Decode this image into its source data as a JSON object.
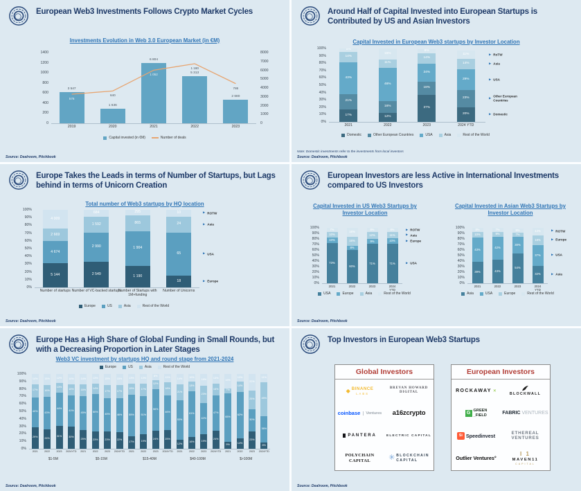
{
  "theme": {
    "slide_bg": "#dde9f1",
    "title_color": "#1e3a68",
    "subtitle_color": "#2e74b5",
    "investor_header_red": "#b13c35",
    "bar_blue": "#62a5c4",
    "line_orange": "#e7a571"
  },
  "slides": [
    {
      "title": "European Web3 Investments Follows Crypto Market Cycles",
      "source": "Source: Dealroom, Pitchbook"
    },
    {
      "title": "Around Half of Capital Invested into European Startups is Contributed by US and Asian Investors",
      "source": "Source: Dealroom, Pitchbook",
      "note": "Note: Domestic investments refer to the investments from local investors"
    },
    {
      "title": "Europe Takes the Leads in terms of Number of Startups, but Lags behind in terms of Unicorn Creation",
      "source": "Source: Dealroom, Pitchbook"
    },
    {
      "title": "European Investors are less Active in International Investments compared to US Investors",
      "source": "Source: Dealroom, Pitchbook"
    },
    {
      "title": "Europe Has a High Share of Global Funding in Small Rounds, but with a Decreasing Proportion in Later Stages",
      "source": "Source: Dealroom, Pitchbook"
    },
    {
      "title": "Top Investors in European Web3 Startups",
      "source": "Source: Dealroom, Pitchbook",
      "global_header": "Global Investors",
      "european_header": "European Investors",
      "global": {
        "binance": {
          "name": "BINANCE",
          "sub": "LABS"
        },
        "brevan": {
          "line1": "BREVAN HOWARD",
          "line2": "DIGITAL"
        },
        "coinbase": {
          "name": "coinbase",
          "sub": "Ventures"
        },
        "a16z": {
          "name": "a16zcrypto"
        },
        "pantera": {
          "name": "PANTERA"
        },
        "electric": {
          "name": "ELECTRIC CAPITAL"
        },
        "polychain": {
          "line1": "POLYCHAIN",
          "line2": "CAPITAL"
        },
        "blockchaincap": {
          "line1": "BLOCKCHAIN",
          "line2": "CAPITAL"
        }
      },
      "european": {
        "rockaway": {
          "name": "ROCKAWAY",
          "mark": "✕"
        },
        "blockwall": {
          "name": "BLOCKWALL"
        },
        "greenfield": {
          "line1": "GREEN",
          "line2": "_FIELD"
        },
        "fabric": {
          "name": "FABRIC",
          "sub": "VENTURES"
        },
        "speedinvest": {
          "badge": "Si",
          "name": "Speedinvest"
        },
        "ethereal": {
          "line1": "ETHEREAL",
          "line2": "VENTURES"
        },
        "outlier": {
          "name": "Outlier Ventures°"
        },
        "maven": {
          "mark": "I 1",
          "line1": "MAVEN11",
          "line2": "CAPITAL"
        }
      }
    }
  ],
  "chart_data": [
    {
      "type": "combo-bar-line",
      "title": "Investments Evolution in Web 3.0 European Market (in €M)",
      "categories": [
        "2019",
        "2020",
        "2021",
        "2022",
        "2023"
      ],
      "series": [
        {
          "name": "Capital invested (in €M)",
          "type": "bar",
          "axis": "right",
          "color": "#62a5c4",
          "values": [
            3547,
            1636,
            6804,
            5313,
            2680
          ]
        },
        {
          "name": "Number of deals",
          "type": "line",
          "axis": "left",
          "color": "#e7a571",
          "values": [
            576,
            640,
            1052,
            1180,
            786
          ]
        }
      ],
      "left_axis": {
        "min": 0,
        "max": 1400,
        "step": 200
      },
      "right_axis": {
        "min": 0,
        "max": 8000,
        "step": 1000
      },
      "legend_position": "bottom",
      "grid": false
    },
    {
      "type": "bar",
      "subtype": "stacked-100",
      "title": "Capital Invested in European Web3 startups by Investor Location",
      "categories": [
        "2021",
        "2022",
        "2023",
        "2024 YTD"
      ],
      "unit": "%",
      "ylim": [
        0,
        100
      ],
      "series": [
        {
          "name": "Domestic",
          "color": "#3c6a80",
          "pointer": "Domestic",
          "values": [
            17,
            12,
            37,
            20
          ]
        },
        {
          "name": "Other European Countries",
          "color": "#558ba3",
          "pointer": "Other European Countries",
          "values": [
            21,
            16,
            18,
            23
          ]
        },
        {
          "name": "USA",
          "color": "#64aac9",
          "pointer": "USA",
          "values": [
            43,
            46,
            24,
            29
          ]
        },
        {
          "name": "Asia",
          "color": "#a9cfe0",
          "pointer": "Asia",
          "values": [
            14,
            11,
            14,
            14
          ]
        },
        {
          "name": "Rest of the World",
          "color": "#d7e7f0",
          "pointer": "RoTW",
          "values": [
            5,
            15,
            6,
            11
          ]
        }
      ]
    },
    {
      "type": "bar",
      "subtype": "stacked-100",
      "absolute": true,
      "title": "Total number of Web3 startups by HQ location",
      "categories": [
        "Number of startups",
        "Number of VC-backed startups",
        "Number of Startups with 1M+funding",
        "Number of Unicorns"
      ],
      "ylim": [
        0,
        100
      ],
      "series": [
        {
          "name": "Europe",
          "color": "#2f5d76",
          "pointer": "Europe",
          "values": [
            5144,
            2549,
            1190,
            18
          ]
        },
        {
          "name": "US",
          "color": "#5b9fc0",
          "pointer": "USA",
          "values": [
            4674,
            2990,
            1904,
            65
          ]
        },
        {
          "name": "Asia",
          "color": "#9dc8dd",
          "pointer": "Asia",
          "values": [
            2669,
            1592,
            865,
            24
          ]
        },
        {
          "name": "Rest of the World",
          "color": "#d2e4f0",
          "pointer": "ROTW",
          "values": [
            4009,
            684,
            295,
            10
          ]
        }
      ]
    },
    {
      "type": "bar",
      "subtype": "stacked-100",
      "title": "Capital Invested in US Web3 Startups by Investor Location",
      "categories": [
        "2021",
        "2022",
        "2023",
        "2024 YTD"
      ],
      "unit": "%",
      "ylim": [
        0,
        100
      ],
      "series": [
        {
          "name": "USA",
          "color": "#45809c",
          "pointer": "USA",
          "values": [
            73,
            60,
            71,
            71
          ]
        },
        {
          "name": "Europe",
          "color": "#64aac9",
          "pointer": "Europe",
          "values": [
            10,
            8,
            9,
            10
          ]
        },
        {
          "name": "Asia",
          "color": "#a9cfe0",
          "pointer": "Asia",
          "values": [
            10,
            16,
            12,
            11
          ]
        },
        {
          "name": "Rest of the World",
          "color": "#d7e7f0",
          "pointer": "ROTW",
          "values": [
            7,
            16,
            8,
            8
          ]
        }
      ]
    },
    {
      "type": "bar",
      "subtype": "stacked-100",
      "title": "Capital Invested in Asian Web3 Startups by Investor Location",
      "categories": [
        "2021",
        "2022",
        "2023",
        "2024 YTD"
      ],
      "unit": "%",
      "ylim": [
        0,
        100
      ],
      "series": [
        {
          "name": "Asia",
          "color": "#45809c",
          "pointer": "Asia",
          "values": [
            39,
            43,
            54,
            32
          ]
        },
        {
          "name": "USA",
          "color": "#64aac9",
          "pointer": "USA",
          "values": [
            43,
            42,
            30,
            37
          ]
        },
        {
          "name": "Europe",
          "color": "#a9cfe0",
          "pointer": "Europe",
          "values": [
            10,
            9,
            7,
            18
          ]
        },
        {
          "name": "Rest of the World",
          "color": "#d7e7f0",
          "pointer": "ROTW",
          "values": [
            8,
            7,
            8,
            14
          ]
        }
      ]
    },
    {
      "type": "bar",
      "subtype": "stacked-100-grouped",
      "title": "Web3 VC investment by startups HQ and round stage from 2021-2024",
      "group_labels": [
        "$1-5M",
        "$5-15M",
        "$15-40M",
        "$40-100M",
        "$>100M"
      ],
      "categories": [
        "2021",
        "2022",
        "2023",
        "2024YTD",
        "2021",
        "2022",
        "2023",
        "2024YTD",
        "2021",
        "2022",
        "2023",
        "2024YTD",
        "2021",
        "2022",
        "2023",
        "2024YTD",
        "2021",
        "2022",
        "2023",
        "2024YTD"
      ],
      "unit": "%",
      "ylim": [
        0,
        100
      ],
      "series": [
        {
          "name": "Europe",
          "color": "#2f5d76",
          "values": [
            29,
            26,
            31,
            30,
            25,
            23,
            23,
            22,
            17,
            19,
            24,
            25,
            12,
            16,
            19,
            24,
            9,
            14,
            23,
            8
          ]
        },
        {
          "name": "US",
          "color": "#5b9fc0",
          "values": [
            40,
            43,
            44,
            41,
            45,
            50,
            45,
            46,
            55,
            51,
            56,
            46,
            53,
            61,
            42,
            47,
            65,
            62,
            30,
            36
          ]
        },
        {
          "name": "Asia",
          "color": "#9dc8dd",
          "values": [
            17,
            16,
            13,
            15,
            16,
            14,
            17,
            17,
            15,
            17,
            12,
            18,
            21,
            13,
            23,
            16,
            7,
            14,
            25,
            45
          ]
        },
        {
          "name": "Rest of the World",
          "color": "#d2e4f0",
          "values": [
            14,
            15,
            12,
            14,
            14,
            13,
            15,
            15,
            13,
            13,
            8,
            11,
            14,
            10,
            16,
            13,
            19,
            10,
            22,
            11
          ]
        }
      ]
    }
  ]
}
